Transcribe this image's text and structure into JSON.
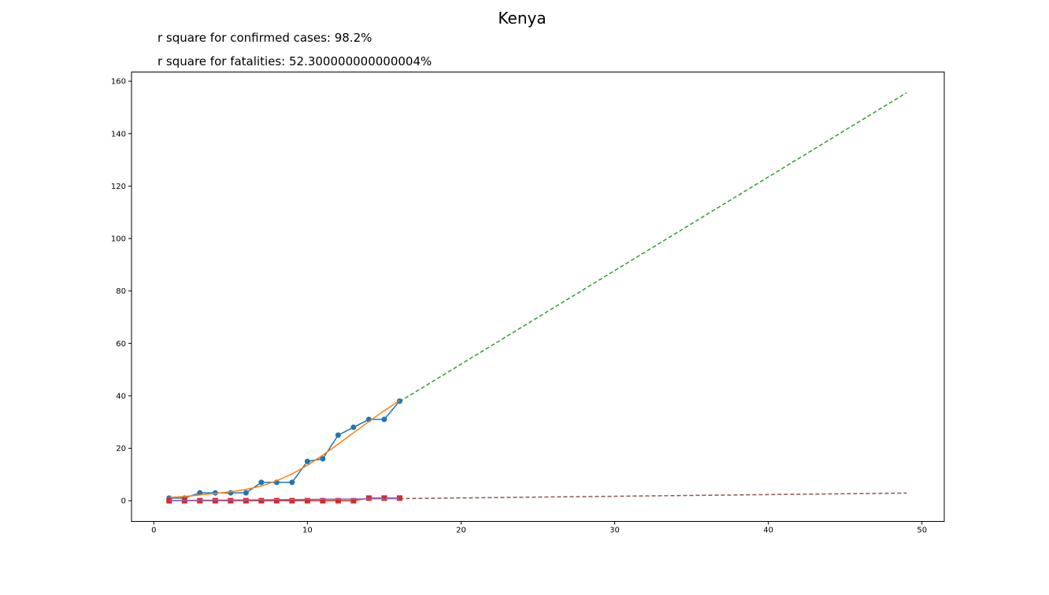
{
  "chart_data": {
    "type": "line",
    "title": "Kenya",
    "annotations": [
      "r square for confirmed cases: 98.2%",
      "r square for fatalities: 52.300000000000004%"
    ],
    "xlabel": "",
    "ylabel": "",
    "xlim": [
      -1.45,
      51.45
    ],
    "ylim": [
      -7.9,
      163.5
    ],
    "xticks": [
      0,
      10,
      20,
      30,
      40,
      50
    ],
    "yticks": [
      0,
      20,
      40,
      60,
      80,
      100,
      120,
      140,
      160
    ],
    "grid": false,
    "legend": "none",
    "series": [
      {
        "kind": "markers-line",
        "marker": "circle",
        "color": "#1f77b4",
        "x": [
          1,
          2,
          3,
          4,
          5,
          6,
          7,
          8,
          9,
          10,
          11,
          12,
          13,
          14,
          15,
          16
        ],
        "y": [
          1,
          1,
          3,
          3,
          3,
          3,
          7,
          7,
          7,
          15,
          16,
          25,
          28,
          31,
          31,
          38
        ]
      },
      {
        "kind": "fit-line",
        "color": "#ff7f0e",
        "x": [
          1,
          2,
          3,
          4,
          5,
          6,
          7,
          8,
          9,
          10,
          11,
          12,
          13,
          14,
          15,
          16
        ],
        "y": [
          1.2,
          1.6,
          2.2,
          2.8,
          3.4,
          4.3,
          5.6,
          7.6,
          10.2,
          13.5,
          17.4,
          21.6,
          25.9,
          30.2,
          34.3,
          38.2
        ]
      },
      {
        "kind": "projection",
        "dash": true,
        "color": "#2ca02c",
        "x": [
          16,
          49
        ],
        "y": [
          37.8,
          155.6
        ]
      },
      {
        "kind": "markers-line",
        "marker": "square",
        "color": "#d62728",
        "x": [
          1,
          2,
          3,
          4,
          5,
          6,
          7,
          8,
          9,
          10,
          11,
          12,
          13,
          14,
          15,
          16
        ],
        "y": [
          0,
          0,
          0,
          0,
          0,
          0,
          0,
          0,
          0,
          0,
          0,
          0,
          0,
          1,
          1,
          1
        ]
      },
      {
        "kind": "fit-line",
        "color": "#9467bd",
        "x": [
          1,
          16
        ],
        "y": [
          0.05,
          0.8
        ]
      },
      {
        "kind": "projection",
        "dash": true,
        "color": "#8c564b",
        "x": [
          16,
          49
        ],
        "y": [
          0.8,
          2.9
        ]
      }
    ]
  }
}
